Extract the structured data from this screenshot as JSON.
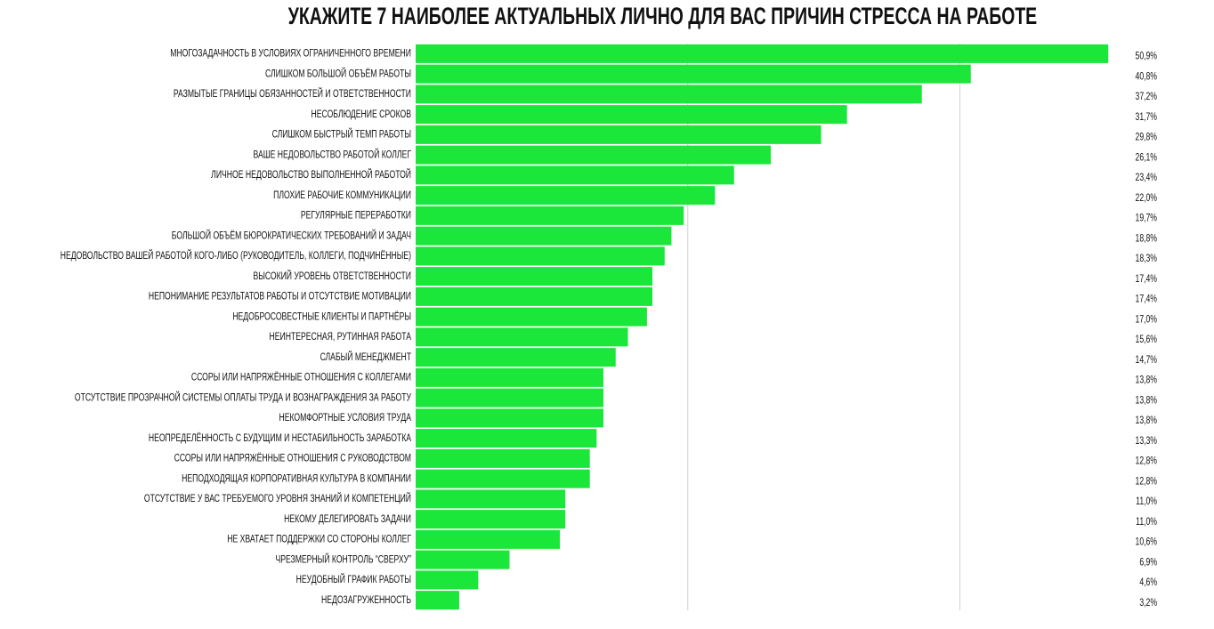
{
  "chart_data": {
    "type": "bar",
    "orientation": "horizontal",
    "title": "УКАЖИТЕ 7 НАИБОЛЕЕ АКТУАЛЬНЫХ  ЛИЧНО ДЛЯ ВАС  ПРИЧИН СТРЕССА НА РАБОТЕ",
    "categories": [
      "МНОГОЗАДАЧНОСТЬ В УСЛОВИЯХ ОГРАНИЧЕННОГО ВРЕМЕНИ",
      "СЛИШКОМ БОЛЬШОЙ ОБЪЁМ РАБОТЫ",
      "РАЗМЫТЫЕ ГРАНИЦЫ ОБЯЗАННОСТЕЙ И ОТВЕТСТВЕННОСТИ",
      "НЕСОБЛЮДЕНИЕ СРОКОВ",
      "СЛИШКОМ БЫСТРЫЙ ТЕМП РАБОТЫ",
      "ВАШЕ НЕДОВОЛЬСТВО РАБОТОЙ КОЛЛЕГ",
      "ЛИЧНОЕ НЕДОВОЛЬСТВО ВЫПОЛНЕННОЙ РАБОТОЙ",
      "ПЛОХИЕ РАБОЧИЕ КОММУНИКАЦИИ",
      "РЕГУЛЯРНЫЕ ПЕРЕРАБОТКИ",
      "БОЛЬШОЙ ОБЪЁМ БЮРОКРАТИЧЕСКИХ ТРЕБОВАНИЙ И ЗАДАЧ",
      "НЕДОВОЛЬСТВО ВАШЕЙ РАБОТОЙ КОГО-ЛИБО (РУКОВОДИТЕЛЬ, КОЛЛЕГИ, ПОДЧИНЁННЫЕ)",
      "ВЫСОКИЙ УРОВЕНЬ ОТВЕТСТВЕННОСТИ",
      "НЕПОНИМАНИЕ РЕЗУЛЬТАТОВ РАБОТЫ И ОТСУТСТВИЕ МОТИВАЦИИ",
      "НЕДОБРОСОВЕСТНЫЕ КЛИЕНТЫ И ПАРТНЁРЫ",
      "НЕИНТЕРЕСНАЯ, РУТИННАЯ РАБОТА",
      "СЛАБЫЙ МЕНЕДЖМЕНТ",
      "ССОРЫ ИЛИ НАПРЯЖЁННЫЕ ОТНОШЕНИЯ С КОЛЛЕГАМИ",
      "ОТСУТСТВИЕ ПРОЗРАЧНОЙ СИСТЕМЫ ОПЛАТЫ ТРУДА И ВОЗНАГРАЖДЕНИЯ ЗА РАБОТУ",
      "НЕКОМФОРТНЫЕ УСЛОВИЯ ТРУДА",
      "НЕОПРЕДЕЛЁННОСТЬ С БУДУЩИМ И НЕСТАБИЛЬНОСТЬ ЗАРАБОТКА",
      "ССОРЫ ИЛИ НАПРЯЖЁННЫЕ ОТНОШЕНИЯ С РУКОВОДСТВОМ",
      "НЕПОДХОДЯЩАЯ КОРПОРАТИВНАЯ КУЛЬТУРА В КОМПАНИИ",
      "ОТСУТСТВИЕ У ВАС ТРЕБУЕМОГО УРОВНЯ ЗНАНИЙ И КОМПЕТЕНЦИЙ",
      "НЕКОМУ ДЕЛЕГИРОВАТЬ ЗАДАЧИ",
      "НЕ ХВАТАЕТ ПОДДЕРЖКИ СО СТОРОНЫ КОЛЛЕГ",
      "ЧРЕЗМЕРНЫЙ КОНТРОЛЬ “СВЕРХУ”",
      "НЕУДОБНЫЙ ГРАФИК РАБОТЫ",
      "НЕДОЗАГРУЖЕННОСТЬ"
    ],
    "values": [
      50.9,
      40.8,
      37.2,
      31.7,
      29.8,
      26.1,
      23.4,
      22.0,
      19.7,
      18.8,
      18.3,
      17.4,
      17.4,
      17.0,
      15.6,
      14.7,
      13.8,
      13.8,
      13.8,
      13.3,
      12.8,
      12.8,
      11.0,
      11.0,
      10.6,
      6.9,
      4.6,
      3.2
    ],
    "value_labels": [
      "50,9%",
      "40,8%",
      "37,2%",
      "31,7%",
      "29,8%",
      "26,1%",
      "23,4%",
      "22,0%",
      "19,7%",
      "18,8%",
      "18,3%",
      "17,4%",
      "17,4%",
      "17,0%",
      "15,6%",
      "14,7%",
      "13,8%",
      "13,8%",
      "13,8%",
      "13,3%",
      "12,8%",
      "12,8%",
      "11,0%",
      "11,0%",
      "10,6%",
      "6,9%",
      "4,6%",
      "3,2%"
    ],
    "color": "#1be63a",
    "xlim": [
      0,
      52
    ],
    "xticks": [
      20,
      40
    ],
    "grid": true
  }
}
